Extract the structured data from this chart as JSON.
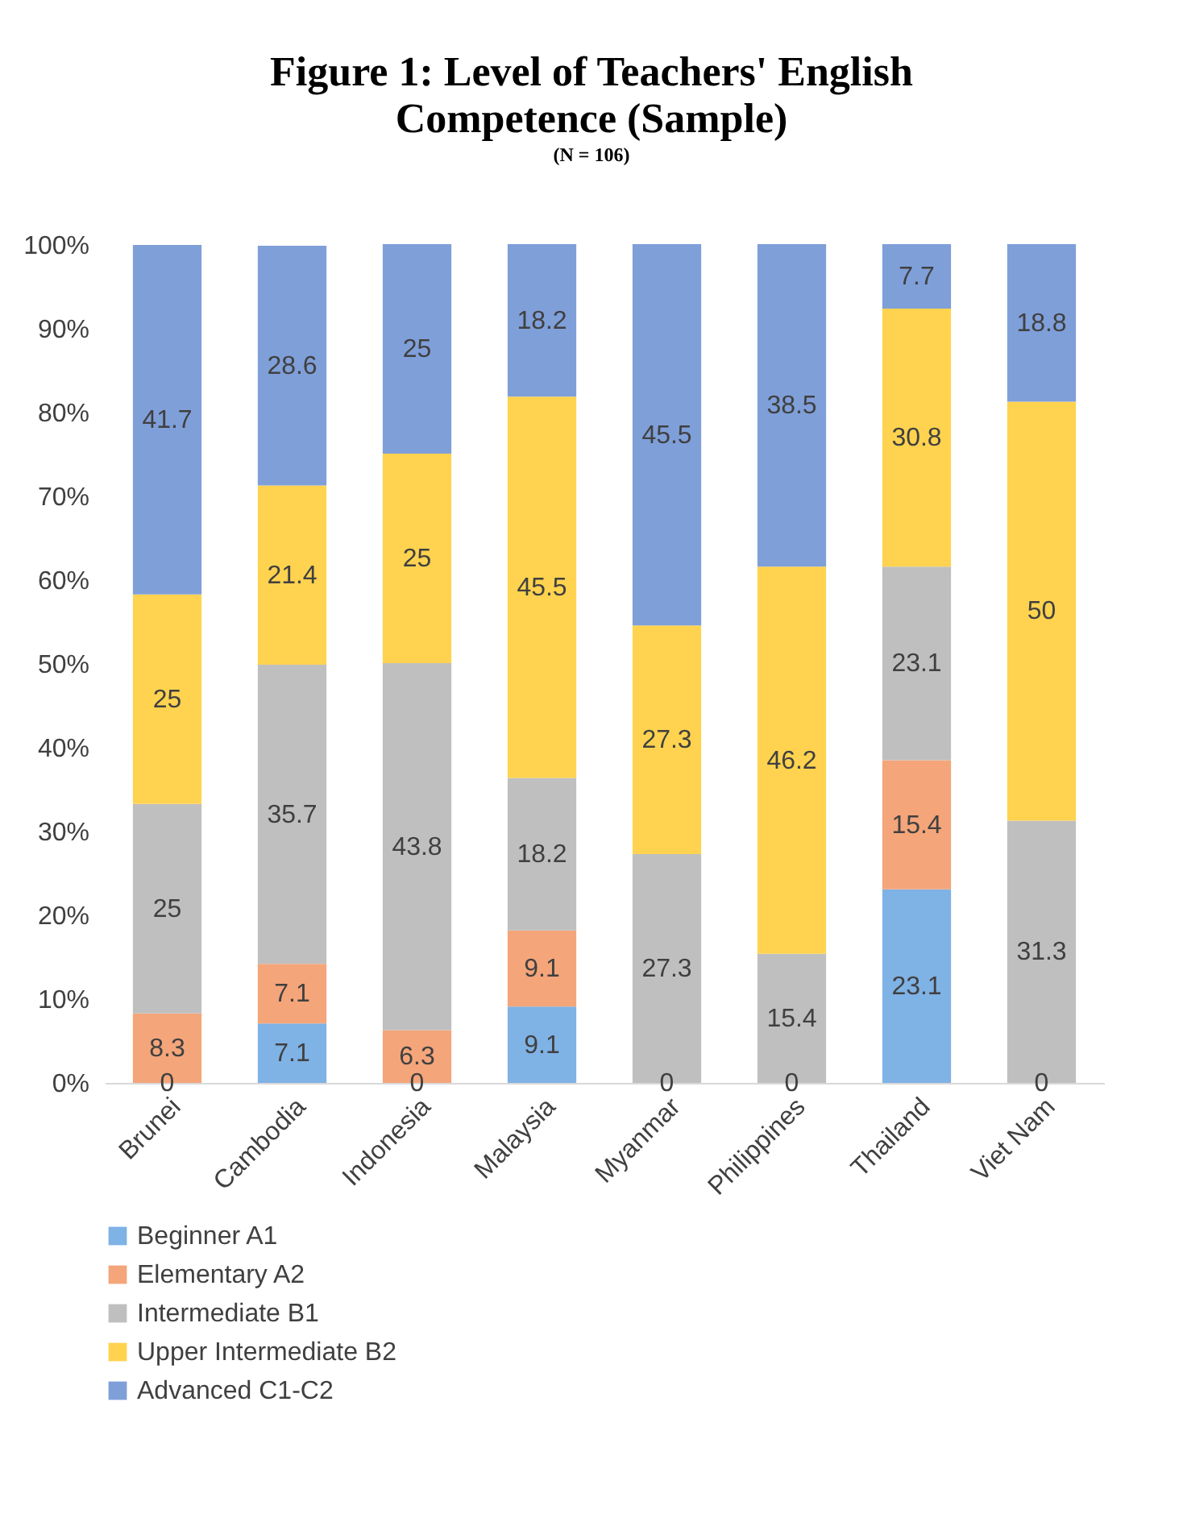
{
  "chart_data": {
    "type": "bar",
    "title": "Figure 1: Level of Teachers' English Competence (Sample)",
    "subtitle": "(N = 106)",
    "categories": [
      "Brunei",
      "Cambodia",
      "Indonesia",
      "Malaysia",
      "Myanmar",
      "Philippines",
      "Thailand",
      "Viet Nam"
    ],
    "series": [
      {
        "name": "Beginner A1",
        "color": "#7fb2e5",
        "values": [
          0,
          7.1,
          0,
          9.1,
          0,
          0,
          23.1,
          0
        ],
        "value_labels": [
          null,
          "7.1",
          null,
          "9.1",
          null,
          null,
          "23.1",
          null
        ]
      },
      {
        "name": "Elementary A2",
        "color": "#f4a57a",
        "values": [
          8.3,
          7.1,
          6.3,
          9.1,
          0,
          0,
          15.4,
          0
        ],
        "value_labels": [
          "8.3",
          "7.1",
          "6.3",
          "9.1",
          null,
          null,
          "15.4",
          null
        ]
      },
      {
        "name": "Intermediate B1",
        "color": "#bfbfbf",
        "values": [
          25,
          35.7,
          43.8,
          18.2,
          27.3,
          15.4,
          23.1,
          31.3
        ],
        "value_labels": [
          "25",
          "35.7",
          "43.8",
          "18.2",
          "27.3",
          "15.4",
          "23.1",
          "31.3"
        ]
      },
      {
        "name": "Upper Intermediate B2",
        "color": "#ffd34f",
        "values": [
          25,
          21.4,
          25,
          45.5,
          27.3,
          46.2,
          30.8,
          50
        ],
        "value_labels": [
          "25",
          "21.4",
          "25",
          "45.5",
          "27.3",
          "46.2",
          "30.8",
          "50"
        ]
      },
      {
        "name": "Advanced C1-C2",
        "color": "#7f9fd9",
        "values": [
          41.7,
          28.6,
          25,
          18.2,
          45.5,
          38.5,
          7.7,
          18.8
        ],
        "value_labels": [
          "41.7",
          "28.6",
          "25",
          "18.2",
          "45.5",
          "38.5",
          "7.7",
          "18.8"
        ]
      }
    ],
    "annotations": [
      {
        "text": "0",
        "x": "Brunei",
        "y": 0
      },
      {
        "text": "0",
        "x": "Indonesia",
        "y": 0
      },
      {
        "text": "0",
        "x": "Myanmar",
        "y": 0
      },
      {
        "text": "0",
        "x": "Philippines",
        "y": 0
      },
      {
        "text": "0",
        "x": "Viet Nam",
        "y": 0
      }
    ],
    "stacked": true,
    "legend": "bottom left",
    "ylim": [
      0,
      100
    ],
    "yticks": [
      {
        "value": 0,
        "label": "0%"
      },
      {
        "value": 10,
        "label": "10%"
      },
      {
        "value": 20,
        "label": "20%"
      },
      {
        "value": 30,
        "label": "30%"
      },
      {
        "value": 40,
        "label": "40%"
      },
      {
        "value": 50,
        "label": "50%"
      },
      {
        "value": 60,
        "label": "60%"
      },
      {
        "value": 70,
        "label": "70%"
      },
      {
        "value": 80,
        "label": "80%"
      },
      {
        "value": 90,
        "label": "90%"
      },
      {
        "value": 100,
        "label": "100%"
      }
    ]
  }
}
